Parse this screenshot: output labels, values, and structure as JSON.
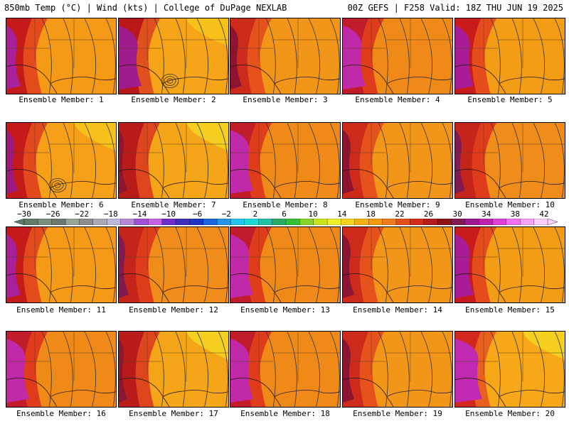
{
  "header": {
    "left": "850mb Temp (°C) | Wind (kts) | College of DuPage NEXLAB",
    "right": "00Z GEFS | F258 Valid: 18Z THU JUN 19 2025"
  },
  "members": [
    {
      "label": "Ensemble Member: 1",
      "style": 0
    },
    {
      "label": "Ensemble Member: 2",
      "style": 1
    },
    {
      "label": "Ensemble Member: 3",
      "style": 2
    },
    {
      "label": "Ensemble Member: 4",
      "style": 3
    },
    {
      "label": "Ensemble Member: 5",
      "style": 4
    },
    {
      "label": "Ensemble Member: 6",
      "style": 5
    },
    {
      "label": "Ensemble Member: 7",
      "style": 6
    },
    {
      "label": "Ensemble Member: 8",
      "style": 3
    },
    {
      "label": "Ensemble Member: 9",
      "style": 2
    },
    {
      "label": "Ensemble Member: 10",
      "style": 7
    },
    {
      "label": "Ensemble Member: 11",
      "style": 0
    },
    {
      "label": "Ensemble Member: 12",
      "style": 7
    },
    {
      "label": "Ensemble Member: 13",
      "style": 3
    },
    {
      "label": "Ensemble Member: 14",
      "style": 2
    },
    {
      "label": "Ensemble Member: 15",
      "style": 4
    },
    {
      "label": "Ensemble Member: 16",
      "style": 3
    },
    {
      "label": "Ensemble Member: 17",
      "style": 6
    },
    {
      "label": "Ensemble Member: 18",
      "style": 3
    },
    {
      "label": "Ensemble Member: 19",
      "style": 2
    },
    {
      "label": "Ensemble Member: 20",
      "style": 8
    }
  ],
  "colorbar": {
    "ticks": [
      "−30",
      "−26",
      "−22",
      "−18",
      "−14",
      "−10",
      "−6",
      "−2",
      "2",
      "6",
      "10",
      "14",
      "18",
      "22",
      "26",
      "30",
      "34",
      "38",
      "42"
    ],
    "colors": [
      "#5e7a6a",
      "#7a8f7e",
      "#6f7670",
      "#9aa39a",
      "#8c8c8c",
      "#a9a9b5",
      "#b9b9dc",
      "#b58bd9",
      "#a24ed8",
      "#c860e8",
      "#6d2dc8",
      "#3f2fb8",
      "#1e34c4",
      "#1c64dc",
      "#2596e6",
      "#25c4ee",
      "#1ed8d8",
      "#20c0a8",
      "#2aaa62",
      "#34c234",
      "#88d428",
      "#c8e41c",
      "#f0f028",
      "#f8d020",
      "#f6b114",
      "#f39a12",
      "#ee7b1d",
      "#e64e1c",
      "#d42c1a",
      "#b41c1c",
      "#8c1414",
      "#801a50",
      "#a01890",
      "#c020b0",
      "#e040d8",
      "#f070f0",
      "#f8a0f8",
      "#fcd0fc"
    ]
  }
}
